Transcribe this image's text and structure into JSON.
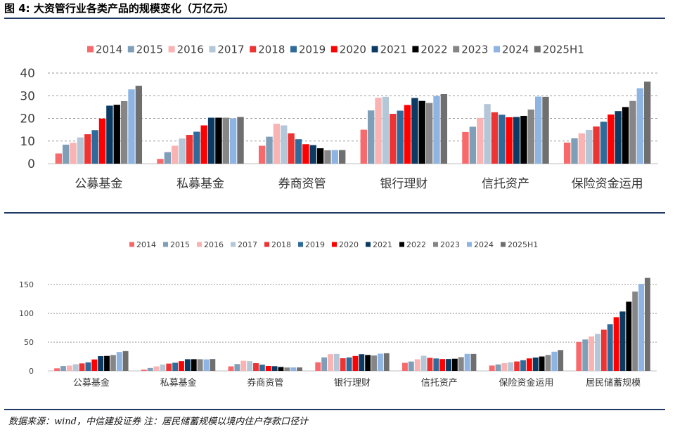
{
  "figure": {
    "title": "图 4:  大资管行业各类产品的规模变化（万亿元）",
    "source": "数据来源：wind，中信建投证券 注：居民储蓄规模以境内住户存款口径计"
  },
  "chart_data": [
    {
      "type": "bar",
      "title": "",
      "xlabel": "",
      "ylabel": "",
      "ylim": [
        0,
        40
      ],
      "yticks": [
        0,
        10,
        20,
        30,
        40
      ],
      "grid": true,
      "legend_position": "top",
      "categories": [
        "公募基金",
        "私募基金",
        "券商资管",
        "银行理财",
        "信托资产",
        "保险资金运用"
      ],
      "series": [
        {
          "name": "2014",
          "color": "#f8696b",
          "values": [
            4.5,
            2.1,
            7.9,
            15.0,
            14.0,
            9.3
          ]
        },
        {
          "name": "2015",
          "color": "#7f9fb8",
          "values": [
            8.4,
            5.1,
            11.9,
            23.5,
            16.3,
            11.2
          ]
        },
        {
          "name": "2016",
          "color": "#f9b3b3",
          "values": [
            9.2,
            7.9,
            17.6,
            29.1,
            20.2,
            13.4
          ]
        },
        {
          "name": "2017",
          "color": "#b4c7d8",
          "values": [
            11.6,
            11.1,
            16.9,
            29.5,
            26.3,
            14.9
          ]
        },
        {
          "name": "2018",
          "color": "#ee3333",
          "values": [
            13.0,
            12.7,
            13.4,
            22.0,
            22.7,
            16.4
          ]
        },
        {
          "name": "2019",
          "color": "#2e6a9a",
          "values": [
            14.8,
            14.1,
            10.8,
            23.4,
            21.6,
            18.5
          ]
        },
        {
          "name": "2020",
          "color": "#ff0000",
          "values": [
            19.9,
            16.9,
            8.6,
            25.9,
            20.5,
            21.7
          ]
        },
        {
          "name": "2021",
          "color": "#0b3a63",
          "values": [
            25.6,
            20.3,
            8.2,
            29.0,
            20.6,
            23.2
          ]
        },
        {
          "name": "2022",
          "color": "#000000",
          "values": [
            26.0,
            20.3,
            6.8,
            27.7,
            21.1,
            25.0
          ]
        },
        {
          "name": "2023",
          "color": "#868686",
          "values": [
            27.6,
            20.3,
            5.9,
            26.8,
            23.9,
            27.7
          ]
        },
        {
          "name": "2024",
          "color": "#8eb4e3",
          "values": [
            32.8,
            20.0,
            6.0,
            29.9,
            29.6,
            33.3
          ]
        },
        {
          "name": "2025H1",
          "color": "#6f6f6f",
          "values": [
            34.4,
            20.6,
            6.0,
            30.7,
            29.5,
            36.2
          ]
        }
      ]
    },
    {
      "type": "bar",
      "title": "",
      "xlabel": "",
      "ylabel": "",
      "ylim": [
        0,
        160
      ],
      "yticks": [
        0,
        50,
        100,
        150
      ],
      "grid": true,
      "legend_position": "top",
      "categories": [
        "公募基金",
        "私募基金",
        "券商资管",
        "银行理财",
        "信托资产",
        "保险资金运用",
        "居民储蓄规模"
      ],
      "series": [
        {
          "name": "2014",
          "color": "#f8696b",
          "values": [
            4.5,
            2.1,
            7.9,
            15.0,
            14.0,
            9.3,
            50.3
          ]
        },
        {
          "name": "2015",
          "color": "#7f9fb8",
          "values": [
            8.4,
            5.1,
            11.9,
            23.5,
            16.3,
            11.2,
            54.6
          ]
        },
        {
          "name": "2016",
          "color": "#f9b3b3",
          "values": [
            9.2,
            7.9,
            17.6,
            29.1,
            20.2,
            13.4,
            59.8
          ]
        },
        {
          "name": "2017",
          "color": "#b4c7d8",
          "values": [
            11.6,
            11.1,
            16.9,
            29.5,
            26.3,
            14.9,
            64.4
          ]
        },
        {
          "name": "2018",
          "color": "#ee3333",
          "values": [
            13.0,
            12.7,
            13.4,
            22.0,
            22.7,
            16.4,
            71.6
          ]
        },
        {
          "name": "2019",
          "color": "#2e6a9a",
          "values": [
            14.8,
            14.1,
            10.8,
            23.4,
            21.6,
            18.5,
            81.3
          ]
        },
        {
          "name": "2020",
          "color": "#ff0000",
          "values": [
            19.9,
            16.9,
            8.6,
            25.9,
            20.5,
            21.7,
            93.4
          ]
        },
        {
          "name": "2021",
          "color": "#0b3a63",
          "values": [
            25.6,
            20.3,
            8.2,
            29.0,
            20.6,
            23.2,
            103.3
          ]
        },
        {
          "name": "2022",
          "color": "#000000",
          "values": [
            26.0,
            20.3,
            6.8,
            27.7,
            21.1,
            25.0,
            120.3
          ]
        },
        {
          "name": "2023",
          "color": "#868686",
          "values": [
            27.6,
            20.3,
            5.9,
            26.8,
            23.9,
            27.7,
            137.9
          ]
        },
        {
          "name": "2024",
          "color": "#8eb4e3",
          "values": [
            32.8,
            20.0,
            6.0,
            29.9,
            29.6,
            33.3,
            151.3
          ]
        },
        {
          "name": "2025H1",
          "color": "#6f6f6f",
          "values": [
            34.4,
            20.6,
            6.0,
            30.7,
            29.5,
            36.2,
            161.7
          ]
        }
      ]
    }
  ]
}
